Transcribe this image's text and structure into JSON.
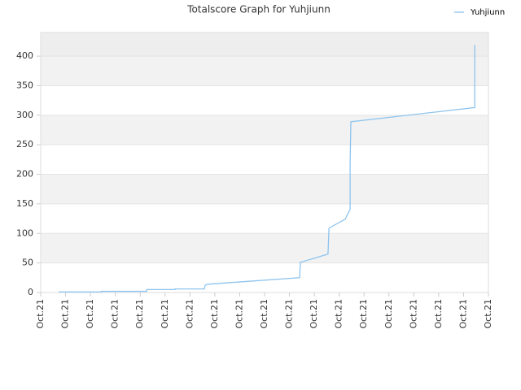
{
  "chart_data": {
    "type": "line",
    "title": "Totalscore Graph for Yuhjiunn",
    "xlim": [
      0,
      18
    ],
    "xticks": [
      {
        "value": 0,
        "label": "Oct.21"
      },
      {
        "value": 1,
        "label": "Oct.21"
      },
      {
        "value": 2,
        "label": "Oct.21"
      },
      {
        "value": 3,
        "label": "Oct.21"
      },
      {
        "value": 4,
        "label": "Oct.21"
      },
      {
        "value": 5,
        "label": "Oct.21"
      },
      {
        "value": 6,
        "label": "Oct.21"
      },
      {
        "value": 7,
        "label": "Oct.21"
      },
      {
        "value": 8,
        "label": "Oct.21"
      },
      {
        "value": 9,
        "label": "Oct.21"
      },
      {
        "value": 10,
        "label": "Oct.21"
      },
      {
        "value": 11,
        "label": "Oct.21"
      },
      {
        "value": 12,
        "label": "Oct.21"
      },
      {
        "value": 13,
        "label": "Oct.21"
      },
      {
        "value": 14,
        "label": "Oct.21"
      },
      {
        "value": 15,
        "label": "Oct.21"
      },
      {
        "value": 16,
        "label": "Oct.21"
      },
      {
        "value": 17,
        "label": "Oct.21"
      },
      {
        "value": 18,
        "label": "Oct.21"
      }
    ],
    "ylim": [
      0,
      440
    ],
    "yticks": [
      0,
      50,
      100,
      150,
      200,
      250,
      300,
      350,
      400
    ],
    "grid": true,
    "legend": "top-right",
    "x": [
      0.72,
      2.45,
      2.45,
      4.26,
      4.26,
      5.4,
      5.4,
      6.58,
      6.61,
      6.71,
      10.41,
      10.44,
      11.55,
      11.59,
      12.24,
      12.44,
      12.44,
      12.47,
      17.45,
      17.45
    ],
    "series": [
      {
        "name": "Yuhjiunn",
        "color": "#8ec4ee",
        "values": [
          1,
          1,
          2,
          2,
          5,
          5,
          6,
          6,
          12,
          14,
          25,
          51,
          65,
          109,
          124,
          141,
          220,
          289,
          313,
          419
        ]
      }
    ]
  }
}
